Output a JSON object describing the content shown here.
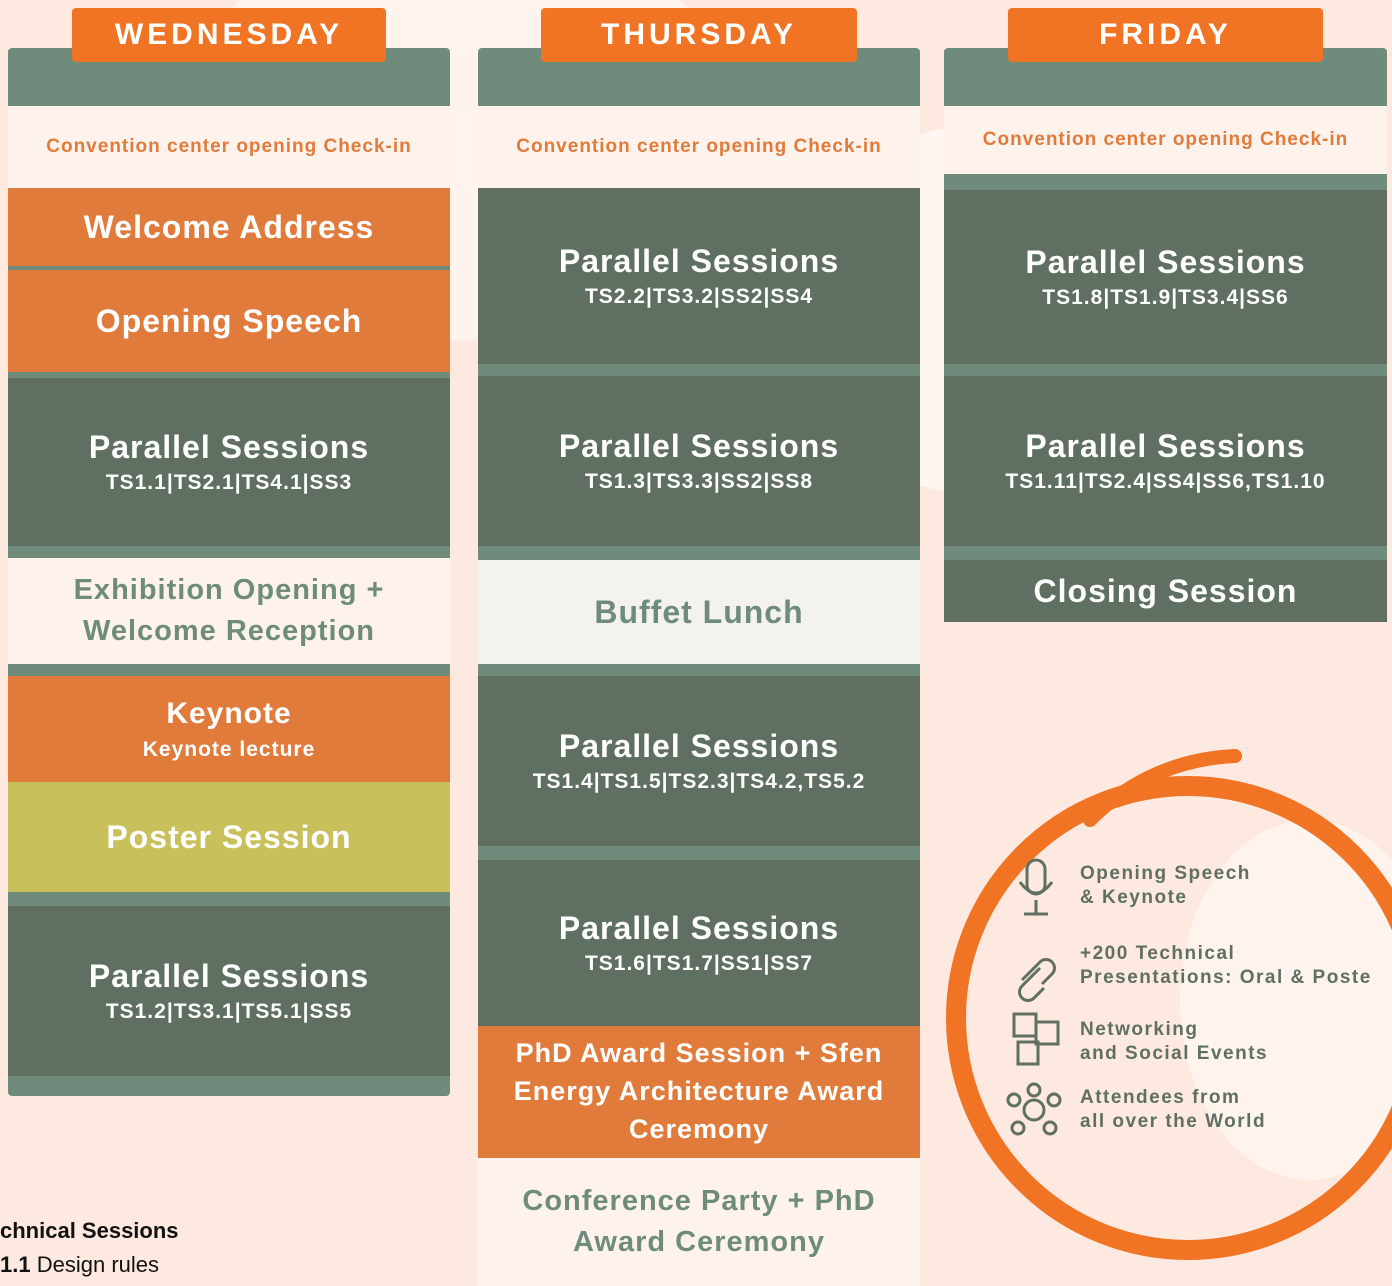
{
  "days": [
    {
      "name": "WEDNESDAY",
      "blocks": [
        {
          "title": "Convention center opening Check-in"
        },
        {
          "title": "Welcome Address"
        },
        {
          "title": "Opening Speech"
        },
        {
          "title": "Parallel Sessions",
          "subtitle": "TS1.1|TS2.1|TS4.1|SS3"
        },
        {
          "title": "Exhibition Opening + Welcome Reception"
        },
        {
          "title": "Keynote",
          "subtitle": "Keynote lecture"
        },
        {
          "title": "Poster Session"
        },
        {
          "title": "Parallel Sessions",
          "subtitle": "TS1.2|TS3.1|TS5.1|SS5"
        }
      ]
    },
    {
      "name": "THURSDAY",
      "blocks": [
        {
          "title": "Convention center opening Check-in"
        },
        {
          "title": "Parallel Sessions",
          "subtitle": "TS2.2|TS3.2|SS2|SS4"
        },
        {
          "title": "Parallel Sessions",
          "subtitle": "TS1.3|TS3.3|SS2|SS8"
        },
        {
          "title": "Buffet Lunch"
        },
        {
          "title": "Parallel Sessions",
          "subtitle": "TS1.4|TS1.5|TS2.3|TS4.2,TS5.2"
        },
        {
          "title": "Parallel Sessions",
          "subtitle": "TS1.6|TS1.7|SS1|SS7"
        },
        {
          "title": "PhD Award Session + Sfen Energy Architecture Award Ceremony"
        },
        {
          "title": "Conference Party + PhD Award Ceremony"
        }
      ]
    },
    {
      "name": "FRIDAY",
      "blocks": [
        {
          "title": "Convention center opening Check-in"
        },
        {
          "title": "Parallel Sessions",
          "subtitle": "TS1.8|TS1.9|TS3.4|SS6"
        },
        {
          "title": "Parallel Sessions",
          "subtitle": "TS1.11|TS2.4|SS4|SS6,TS1.10"
        },
        {
          "title": "Closing Session"
        }
      ]
    }
  ],
  "highlights": [
    {
      "lines": [
        "Opening Speech",
        "& Keynote"
      ]
    },
    {
      "lines": [
        "+200 Technical",
        "Presentations: Oral & Poste"
      ]
    },
    {
      "lines": [
        "Networking",
        "and Social Events"
      ]
    },
    {
      "lines": [
        "Attendees from",
        "all over the World"
      ]
    }
  ],
  "legend": {
    "heading": "chnical Sessions",
    "items": [
      {
        "code": "1.1",
        "label": "Design rules"
      }
    ]
  }
}
